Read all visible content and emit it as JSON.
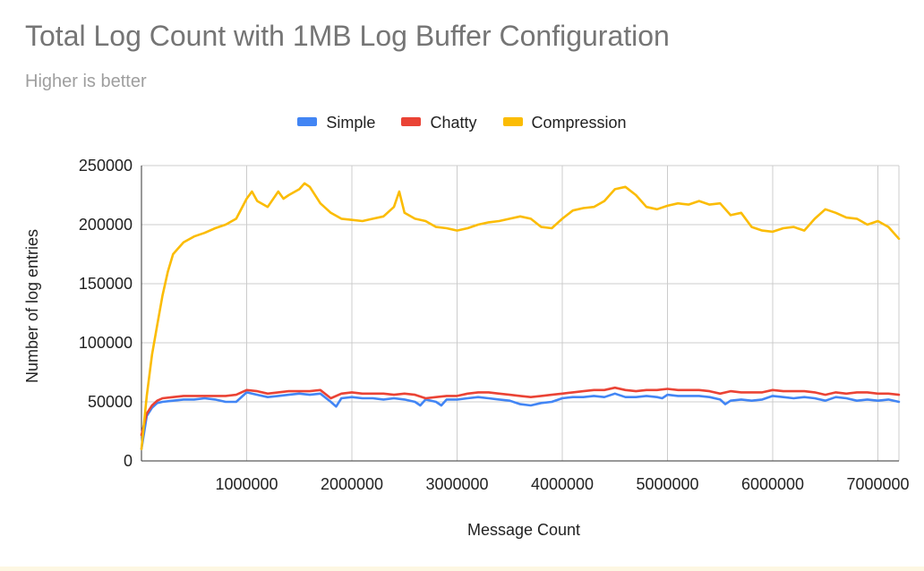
{
  "chart": {
    "title": "Total Log Count with 1MB Log Buffer Configuration",
    "subtitle": "Higher is better"
  },
  "legend": [
    {
      "name": "Simple",
      "color": "#4285f4"
    },
    {
      "name": "Chatty",
      "color": "#ea4335"
    },
    {
      "name": "Compression",
      "color": "#fbbc04"
    }
  ],
  "chart_data": {
    "type": "line",
    "title": "Total Log Count with 1MB Log Buffer Configuration",
    "subtitle": "Higher is better",
    "xlabel": "Message Count",
    "ylabel": "Number of log entries",
    "xlim": [
      0,
      7200000
    ],
    "ylim": [
      0,
      250000
    ],
    "x_ticks": [
      1000000,
      2000000,
      3000000,
      4000000,
      5000000,
      6000000,
      7000000
    ],
    "y_ticks": [
      0,
      50000,
      100000,
      150000,
      200000,
      250000
    ],
    "grid": true,
    "legend_position": "top",
    "series": [
      {
        "name": "Simple",
        "color": "#4285f4",
        "x": [
          0,
          50000,
          100000,
          150000,
          200000,
          300000,
          400000,
          500000,
          600000,
          700000,
          800000,
          900000,
          1000000,
          1100000,
          1200000,
          1300000,
          1400000,
          1500000,
          1600000,
          1700000,
          1800000,
          1850000,
          1900000,
          2000000,
          2100000,
          2200000,
          2300000,
          2400000,
          2500000,
          2600000,
          2650000,
          2700000,
          2800000,
          2850000,
          2900000,
          3000000,
          3100000,
          3200000,
          3300000,
          3400000,
          3500000,
          3600000,
          3700000,
          3800000,
          3900000,
          4000000,
          4100000,
          4200000,
          4300000,
          4400000,
          4500000,
          4600000,
          4700000,
          4800000,
          4900000,
          4950000,
          5000000,
          5100000,
          5200000,
          5300000,
          5400000,
          5500000,
          5550000,
          5600000,
          5700000,
          5800000,
          5900000,
          6000000,
          6100000,
          6200000,
          6300000,
          6400000,
          6500000,
          6600000,
          6700000,
          6800000,
          6900000,
          7000000,
          7100000,
          7200000
        ],
        "y": [
          10000,
          38000,
          45000,
          49000,
          50000,
          51000,
          52000,
          52000,
          53000,
          52000,
          50000,
          50000,
          58000,
          56000,
          54000,
          55000,
          56000,
          57000,
          56000,
          57000,
          50000,
          46000,
          53000,
          54000,
          53000,
          53000,
          52000,
          53000,
          52000,
          50000,
          47000,
          52000,
          50000,
          47000,
          52000,
          52000,
          53000,
          54000,
          53000,
          52000,
          51000,
          48000,
          47000,
          49000,
          50000,
          53000,
          54000,
          54000,
          55000,
          54000,
          57000,
          54000,
          54000,
          55000,
          54000,
          53000,
          56000,
          55000,
          55000,
          55000,
          54000,
          52000,
          48000,
          51000,
          52000,
          51000,
          52000,
          55000,
          54000,
          53000,
          54000,
          53000,
          51000,
          54000,
          53000,
          51000,
          52000,
          51000,
          52000,
          50000
        ]
      },
      {
        "name": "Chatty",
        "color": "#ea4335",
        "x": [
          0,
          50000,
          100000,
          150000,
          200000,
          300000,
          400000,
          500000,
          600000,
          700000,
          800000,
          900000,
          1000000,
          1100000,
          1200000,
          1300000,
          1400000,
          1500000,
          1600000,
          1700000,
          1800000,
          1900000,
          2000000,
          2100000,
          2200000,
          2300000,
          2400000,
          2500000,
          2600000,
          2700000,
          2800000,
          2900000,
          3000000,
          3100000,
          3200000,
          3300000,
          3400000,
          3500000,
          3600000,
          3700000,
          3800000,
          3900000,
          4000000,
          4100000,
          4200000,
          4300000,
          4400000,
          4500000,
          4600000,
          4700000,
          4800000,
          4900000,
          5000000,
          5100000,
          5200000,
          5300000,
          5400000,
          5500000,
          5600000,
          5700000,
          5800000,
          5900000,
          6000000,
          6100000,
          6200000,
          6300000,
          6400000,
          6500000,
          6600000,
          6700000,
          6800000,
          6900000,
          7000000,
          7100000,
          7200000
        ],
        "y": [
          22000,
          40000,
          47000,
          51000,
          53000,
          54000,
          55000,
          55000,
          55000,
          55000,
          55000,
          56000,
          60000,
          59000,
          57000,
          58000,
          59000,
          59000,
          59000,
          60000,
          53000,
          57000,
          58000,
          57000,
          57000,
          57000,
          56000,
          57000,
          56000,
          53000,
          54000,
          55000,
          55000,
          57000,
          58000,
          58000,
          57000,
          56000,
          55000,
          54000,
          55000,
          56000,
          57000,
          58000,
          59000,
          60000,
          60000,
          62000,
          60000,
          59000,
          60000,
          60000,
          61000,
          60000,
          60000,
          60000,
          59000,
          57000,
          59000,
          58000,
          58000,
          58000,
          60000,
          59000,
          59000,
          59000,
          58000,
          56000,
          58000,
          57000,
          58000,
          58000,
          57000,
          57000,
          56000
        ]
      },
      {
        "name": "Compression",
        "color": "#fbbc04",
        "x": [
          0,
          50000,
          100000,
          150000,
          200000,
          250000,
          300000,
          350000,
          400000,
          500000,
          600000,
          700000,
          800000,
          900000,
          1000000,
          1050000,
          1100000,
          1200000,
          1300000,
          1350000,
          1400000,
          1500000,
          1550000,
          1600000,
          1700000,
          1800000,
          1900000,
          2000000,
          2100000,
          2200000,
          2300000,
          2400000,
          2450000,
          2500000,
          2600000,
          2700000,
          2800000,
          2900000,
          3000000,
          3100000,
          3200000,
          3300000,
          3400000,
          3500000,
          3600000,
          3700000,
          3800000,
          3900000,
          4000000,
          4100000,
          4200000,
          4300000,
          4400000,
          4500000,
          4600000,
          4700000,
          4800000,
          4900000,
          5000000,
          5100000,
          5200000,
          5300000,
          5400000,
          5500000,
          5600000,
          5700000,
          5800000,
          5900000,
          6000000,
          6100000,
          6200000,
          6300000,
          6400000,
          6500000,
          6600000,
          6700000,
          6800000,
          6900000,
          7000000,
          7100000,
          7200000
        ],
        "y": [
          10000,
          55000,
          90000,
          115000,
          140000,
          160000,
          175000,
          180000,
          185000,
          190000,
          193000,
          197000,
          200000,
          205000,
          222000,
          228000,
          220000,
          215000,
          228000,
          222000,
          225000,
          230000,
          235000,
          232000,
          218000,
          210000,
          205000,
          204000,
          203000,
          205000,
          207000,
          215000,
          228000,
          210000,
          205000,
          203000,
          198000,
          197000,
          195000,
          197000,
          200000,
          202000,
          203000,
          205000,
          207000,
          205000,
          198000,
          197000,
          205000,
          212000,
          214000,
          215000,
          220000,
          230000,
          232000,
          225000,
          215000,
          213000,
          216000,
          218000,
          217000,
          220000,
          217000,
          218000,
          208000,
          210000,
          198000,
          195000,
          194000,
          197000,
          198000,
          195000,
          205000,
          213000,
          210000,
          206000,
          205000,
          200000,
          203000,
          198000,
          188000
        ]
      }
    ]
  }
}
